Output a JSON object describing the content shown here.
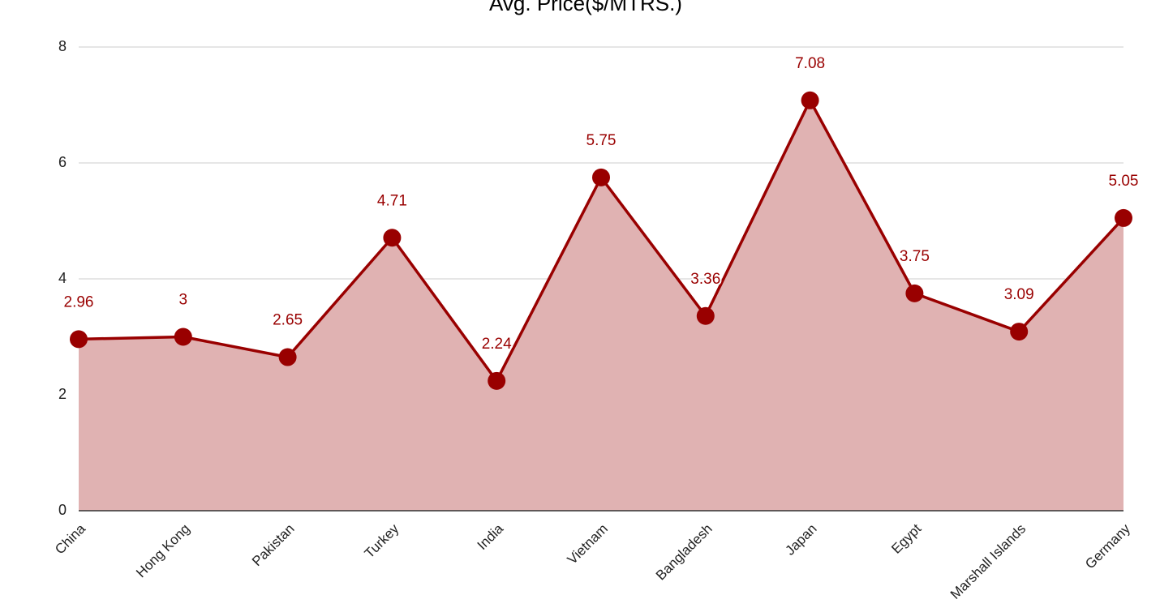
{
  "chart_data": {
    "type": "area",
    "title": "Avg. Price($/MTRS.)",
    "categories": [
      "China",
      "Hong Kong",
      "Pakistan",
      "Turkey",
      "India",
      "Vietnam",
      "Bangladesh",
      "Japan",
      "Egypt",
      "Marshall Islands",
      "Germany"
    ],
    "values": [
      2.96,
      3,
      2.65,
      4.71,
      2.24,
      5.75,
      3.36,
      7.08,
      3.75,
      3.09,
      5.05
    ],
    "color": "#990000",
    "fill_color": "#e0b2b2",
    "ylim": [
      0,
      8
    ],
    "yticks": [
      0,
      2,
      4,
      6,
      8
    ],
    "grid": true
  }
}
